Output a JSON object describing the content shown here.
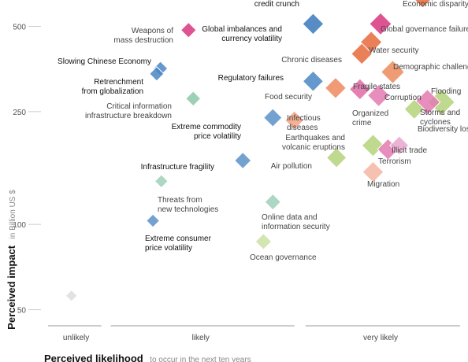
{
  "chart_data": {
    "type": "scatter",
    "title": "",
    "xlabel": "Perceived likelihood",
    "xlabel_note": "to occur in the next ten years",
    "ylabel": "Perceived impact",
    "ylabel_note": "in Billion US $",
    "y_scale": "log",
    "ylim": [
      45,
      600
    ],
    "y_ticks": [
      50,
      100,
      250,
      500
    ],
    "x_categories": [
      "unlikely",
      "likely",
      "very likely"
    ],
    "point_style": {
      "marker": "diamond",
      "size_encodes": "importance"
    },
    "points": [
      {
        "label": "credit crunch",
        "x": 2.88,
        "y": 510,
        "size": 2.6,
        "color": "#3a78bb",
        "bold": true
      },
      {
        "label": "Economic disparity",
        "x": 4.05,
        "y": 630,
        "size": 2.4,
        "color": "#e8683a",
        "bold": false
      },
      {
        "label": "Weapons of mass destruction",
        "x": 1.55,
        "y": 485,
        "size": 1.6,
        "color": "#d8367f",
        "bold": false
      },
      {
        "label": "Global imbalances and currency volatility",
        "x": 2.88,
        "y": 510,
        "size": 0,
        "color": "#3a78bb",
        "bold": true
      },
      {
        "label": "Global governance failure",
        "x": 3.6,
        "y": 510,
        "size": 2.8,
        "color": "#d8367f",
        "bold": false
      },
      {
        "label": "Water security",
        "x": 3.5,
        "y": 440,
        "size": 2.7,
        "color": "#e8683a",
        "bold": false
      },
      {
        "label": "Chronic diseases",
        "x": 3.4,
        "y": 400,
        "size": 2.6,
        "color": "#e8683a",
        "bold": false
      },
      {
        "label": "Demographic challenges",
        "x": 3.73,
        "y": 345,
        "size": 3.0,
        "color": "#ec8a5a",
        "bold": false
      },
      {
        "label": "Slowing Chinese Economy",
        "x": 1.25,
        "y": 355,
        "size": 1.4,
        "color": "#4a86c4",
        "bold": true
      },
      {
        "label": "Retrenchment from globalization",
        "x": 1.21,
        "y": 340,
        "size": 1.4,
        "color": "#4a86c4",
        "bold": true
      },
      {
        "label": "Regulatory failures",
        "x": 2.88,
        "y": 320,
        "size": 2.5,
        "color": "#4a86c4",
        "bold": true
      },
      {
        "label": "Food security",
        "x": 3.12,
        "y": 303,
        "size": 2.6,
        "color": "#ef8a5e",
        "bold": false
      },
      {
        "label": "Fragile states",
        "x": 3.38,
        "y": 300,
        "size": 2.6,
        "color": "#e06aa6",
        "bold": false
      },
      {
        "label": "Corruption",
        "x": 3.58,
        "y": 285,
        "size": 2.8,
        "color": "#e37ab0",
        "bold": false
      },
      {
        "label": "Flooding",
        "x": 4.25,
        "y": 270,
        "size": 3.6,
        "color": "#b4d47a",
        "bold": false
      },
      {
        "label": "Storms and cyclones",
        "x": 4.1,
        "y": 270,
        "size": 3.4,
        "color": "#e37ab0",
        "bold": false
      },
      {
        "label": "Biodiversity loss",
        "x": 3.96,
        "y": 255,
        "size": 2.4,
        "color": "#b4d47a",
        "bold": false
      },
      {
        "label": "Critical information infrastructure breakdown",
        "x": 1.6,
        "y": 278,
        "size": 1.5,
        "color": "#8cc8a8",
        "bold": false
      },
      {
        "label": "Extreme commodity price volatility",
        "x": 2.45,
        "y": 238,
        "size": 2.1,
        "color": "#5a92c8",
        "bold": true
      },
      {
        "label": "Infectious diseases",
        "x": 2.68,
        "y": 233,
        "size": 2.2,
        "color": "#f3a283",
        "bold": false
      },
      {
        "label": "Organized crime",
        "x": 3.58,
        "y": 250,
        "size": 0,
        "color": "#e37ab0",
        "bold": false
      },
      {
        "label": "Earthquakes and volcanic eruptions",
        "x": 3.52,
        "y": 190,
        "size": 2.8,
        "color": "#b4d47a",
        "bold": false
      },
      {
        "label": "Illicit trade",
        "x": 3.8,
        "y": 190,
        "size": 2.2,
        "color": "#e9a7cc",
        "bold": false
      },
      {
        "label": "Terrorism",
        "x": 3.68,
        "y": 184,
        "size": 2.6,
        "color": "#e37ab0",
        "bold": false
      },
      {
        "label": "Air pollution",
        "x": 3.13,
        "y": 172,
        "size": 2.4,
        "color": "#b4d47a",
        "bold": false
      },
      {
        "label": "Infrastructure fragility",
        "x": 2.13,
        "y": 168,
        "size": 1.8,
        "color": "#5a92c8",
        "bold": true
      },
      {
        "label": "Migration",
        "x": 3.52,
        "y": 153,
        "size": 2.6,
        "color": "#f4b6a2",
        "bold": false
      },
      {
        "label": "Threats from new technologies",
        "x": 1.26,
        "y": 142,
        "size": 1.2,
        "color": "#9fd0b7",
        "bold": false
      },
      {
        "label": "Online data and information security",
        "x": 2.45,
        "y": 120,
        "size": 1.7,
        "color": "#9fd0b7",
        "bold": false
      },
      {
        "label": "Extreme consumer price volatility",
        "x": 1.17,
        "y": 103,
        "size": 1.2,
        "color": "#5a92c8",
        "bold": true
      },
      {
        "label": "Ocean governance",
        "x": 2.35,
        "y": 87,
        "size": 1.7,
        "color": "#cbe0a2",
        "bold": false
      },
      {
        "label": "",
        "x": 0.3,
        "y": 56,
        "size": 0.9,
        "color": "#dddddd",
        "bold": false
      }
    ]
  }
}
